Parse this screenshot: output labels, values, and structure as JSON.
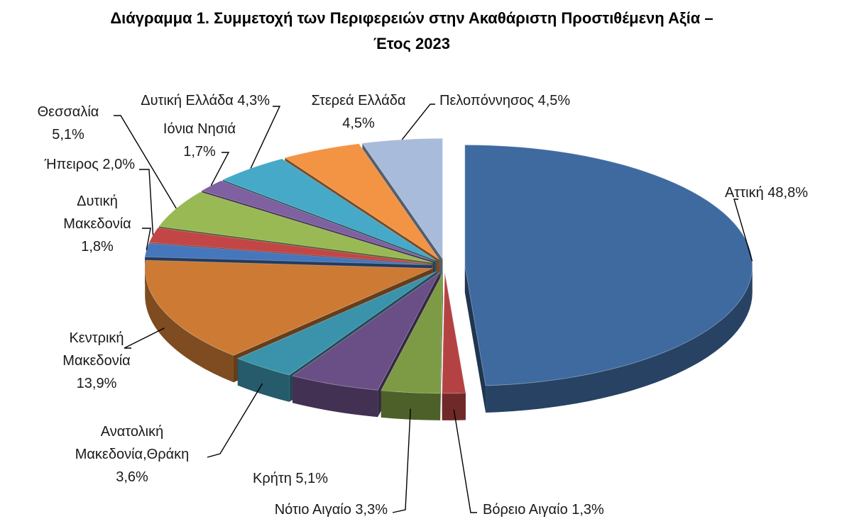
{
  "title": {
    "line1": "Διάγραμμα 1. Συμμετοχή των Περιφερειών στην Ακαθάριστη Προστιθέμενη Αξία –",
    "line2": "Έτος 2023"
  },
  "chart_data": {
    "type": "pie",
    "title": "Διάγραμμα 1. Συμμετοχή των Περιφερειών στην Ακαθάριστη Προστιθέμενη Αξία – Έτος 2023",
    "style": "3d-exploded",
    "value_unit": "%",
    "slices": [
      {
        "label": "Αττική",
        "value": 48.8,
        "display": "48,8%",
        "label_text": [
          "Αττική 48,8%"
        ],
        "color": "#3f6aa0"
      },
      {
        "label": "Βόρειο Αιγαίο",
        "value": 1.3,
        "display": "1,3%",
        "label_text": [
          "Βόρειο Αιγαίο 1,3%"
        ],
        "color": "#b54242"
      },
      {
        "label": "Νότιο Αιγαίο",
        "value": 3.3,
        "display": "3,3%",
        "label_text": [
          "Νότιο Αιγαίο 3,3%"
        ],
        "color": "#7c9b44"
      },
      {
        "label": "Κρήτη",
        "value": 5.1,
        "display": "5,1%",
        "label_text": [
          "Κρήτη 5,1%"
        ],
        "color": "#6a4f86"
      },
      {
        "label": "Ανατολική Μακεδονία,Θράκη",
        "value": 3.6,
        "display": "3,6%",
        "label_text": [
          "Ανατολική",
          "Μακεδονία,Θράκη",
          "3,6%"
        ],
        "color": "#3b93ab"
      },
      {
        "label": "Κεντρική Μακεδονία",
        "value": 13.9,
        "display": "13,9%",
        "label_text": [
          "Κεντρική",
          "Μακεδονία",
          "13,9%"
        ],
        "color": "#cc7a34"
      },
      {
        "label": "Δυτική Μακεδονία",
        "value": 1.8,
        "display": "1,8%",
        "label_text": [
          "Δυτική",
          "Μακεδονία",
          "1,8%"
        ],
        "color": "#4676bb"
      },
      {
        "label": "Ήπειρος",
        "value": 2.0,
        "display": "2,0%",
        "label_text": [
          "Ήπειρος 2,0%"
        ],
        "color": "#c24645"
      },
      {
        "label": "Θεσσαλία",
        "value": 5.1,
        "display": "5,1%",
        "label_text": [
          "Θεσσαλία",
          "5,1%"
        ],
        "color": "#98b954"
      },
      {
        "label": "Ιόνια Νησιά",
        "value": 1.7,
        "display": "1,7%",
        "label_text": [
          "Ιόνια Νησιά",
          "1,7%"
        ],
        "color": "#7f60a0"
      },
      {
        "label": "Δυτική Ελλάδα",
        "value": 4.3,
        "display": "4,3%",
        "label_text": [
          "Δυτική Ελλάδα 4,3%"
        ],
        "color": "#45a9c7"
      },
      {
        "label": "Στερεά Ελλάδα",
        "value": 4.5,
        "display": "4,5%",
        "label_text": [
          "Στερεά Ελλάδα",
          "4,5%"
        ],
        "color": "#f39444"
      },
      {
        "label": "Πελοπόννησος",
        "value": 4.5,
        "display": "4,5%",
        "label_text": [
          "Πελοπόννησος 4,5%"
        ],
        "color": "#a9bbda"
      }
    ]
  }
}
